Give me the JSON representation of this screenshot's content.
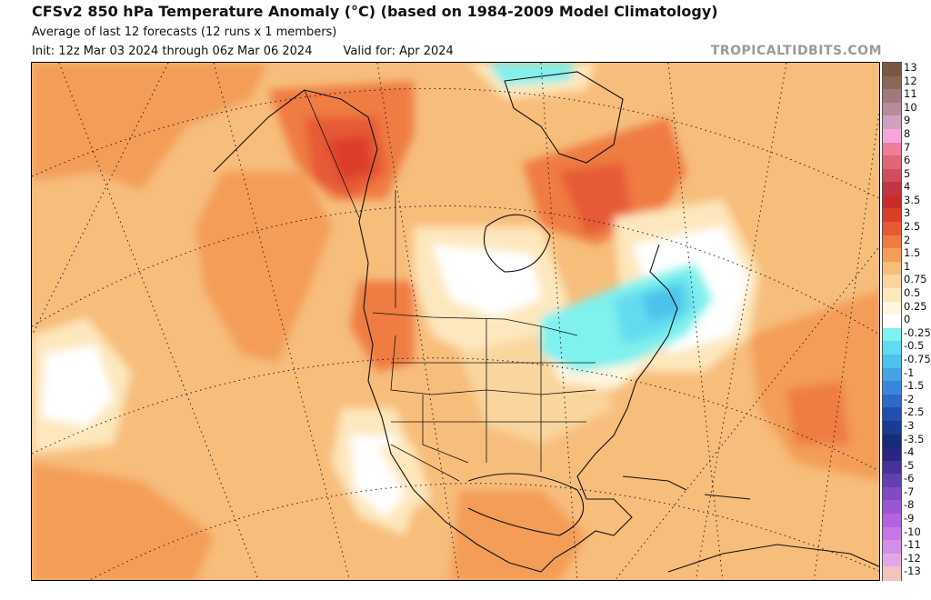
{
  "header": {
    "title": "CFSv2 850 hPa Temperature Anomaly (°C) (based on 1984-2009 Model Climatology)",
    "subtitle": "Average of last 12 forecasts (12 runs x 1 members)",
    "init": "Init: 12z Mar 03 2024 through 06z Mar 06 2024",
    "valid": "Valid for: Apr 2024",
    "brand": "TROPICALTIDBITS.COM"
  },
  "colorbar": [
    {
      "label": "13",
      "color": "#7a5744"
    },
    {
      "label": "12",
      "color": "#8d6755"
    },
    {
      "label": "11",
      "color": "#a0787a"
    },
    {
      "label": "10",
      "color": "#b88a9a"
    },
    {
      "label": "9",
      "color": "#d39fc0"
    },
    {
      "label": "8",
      "color": "#f7a6dc"
    },
    {
      "label": "7",
      "color": "#ec7d9b"
    },
    {
      "label": "6",
      "color": "#de6675"
    },
    {
      "label": "5",
      "color": "#d04d5c"
    },
    {
      "label": "4",
      "color": "#c23544"
    },
    {
      "label": "3.5",
      "color": "#c92d2a"
    },
    {
      "label": "3",
      "color": "#dc3e2c"
    },
    {
      "label": "2.5",
      "color": "#e65a34"
    },
    {
      "label": "2",
      "color": "#ef7b42"
    },
    {
      "label": "1.5",
      "color": "#f39d58"
    },
    {
      "label": "1",
      "color": "#f7bd7b"
    },
    {
      "label": "0.75",
      "color": "#fad59e"
    },
    {
      "label": "0.5",
      "color": "#fde7bd"
    },
    {
      "label": "0.25",
      "color": "#fff6df"
    },
    {
      "label": "0",
      "color": "#ffffff"
    },
    {
      "label": "-0.25",
      "color": "#7ff1ee"
    },
    {
      "label": "-0.5",
      "color": "#63dbef"
    },
    {
      "label": "-0.75",
      "color": "#4dc2ec"
    },
    {
      "label": "-1",
      "color": "#43a3e3"
    },
    {
      "label": "-1.5",
      "color": "#3985da"
    },
    {
      "label": "-2",
      "color": "#2f68c9"
    },
    {
      "label": "-2.5",
      "color": "#224fad"
    },
    {
      "label": "-3",
      "color": "#1a3b8f"
    },
    {
      "label": "-3.5",
      "color": "#142b76"
    },
    {
      "label": "-4",
      "color": "#2a2580"
    },
    {
      "label": "-5",
      "color": "#463397"
    },
    {
      "label": "-6",
      "color": "#6240ad"
    },
    {
      "label": "-7",
      "color": "#7f4cc3"
    },
    {
      "label": "-8",
      "color": "#9c55d5"
    },
    {
      "label": "-9",
      "color": "#b363df"
    },
    {
      "label": "-10",
      "color": "#c477e5"
    },
    {
      "label": "-11",
      "color": "#d38ee5"
    },
    {
      "label": "-12",
      "color": "#e2a8e6"
    },
    {
      "label": "-13",
      "color": "#f4c3bd"
    }
  ]
}
